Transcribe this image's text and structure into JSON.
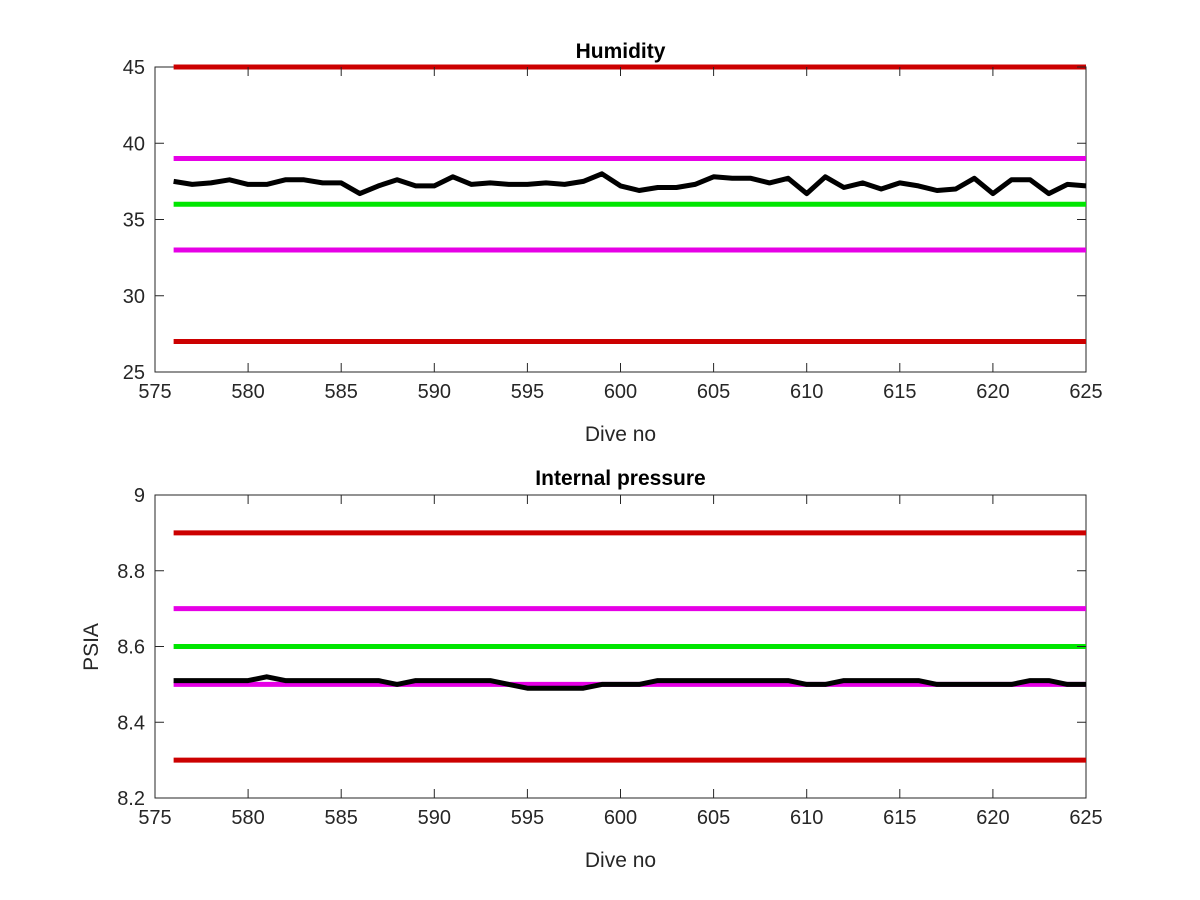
{
  "figure": {
    "background": "#ffffff"
  },
  "chart_data": [
    {
      "type": "line",
      "title": "Humidity",
      "xlabel": "Dive no",
      "ylabel": "",
      "xlim": [
        575,
        625
      ],
      "ylim": [
        25,
        45
      ],
      "xticks": [
        575,
        580,
        585,
        590,
        595,
        600,
        605,
        610,
        615,
        620,
        625
      ],
      "yticks": [
        25,
        30,
        35,
        40,
        45
      ],
      "grid": false,
      "reference_lines": [
        {
          "y": 45,
          "color": "#cc0000"
        },
        {
          "y": 39,
          "color": "#e600e6"
        },
        {
          "y": 36,
          "color": "#00e600"
        },
        {
          "y": 33,
          "color": "#e600e6"
        },
        {
          "y": 27,
          "color": "#cc0000"
        }
      ],
      "series": [
        {
          "color": "#000000",
          "x": [
            576,
            577,
            578,
            579,
            580,
            581,
            582,
            583,
            584,
            585,
            586,
            587,
            588,
            589,
            590,
            591,
            592,
            593,
            594,
            595,
            596,
            597,
            598,
            599,
            600,
            601,
            602,
            603,
            604,
            605,
            606,
            607,
            608,
            609,
            610,
            611,
            612,
            613,
            614,
            615,
            616,
            617,
            618,
            619,
            620,
            621,
            622,
            623,
            624,
            625
          ],
          "y": [
            37.5,
            37.3,
            37.4,
            37.6,
            37.3,
            37.3,
            37.6,
            37.6,
            37.4,
            37.4,
            36.7,
            37.2,
            37.6,
            37.2,
            37.2,
            37.8,
            37.3,
            37.4,
            37.3,
            37.3,
            37.4,
            37.3,
            37.5,
            38.0,
            37.2,
            36.9,
            37.1,
            37.1,
            37.3,
            37.8,
            37.7,
            37.7,
            37.4,
            37.7,
            36.7,
            37.8,
            37.1,
            37.4,
            37.0,
            37.4,
            37.2,
            36.9,
            37.0,
            37.7,
            36.7,
            37.6,
            37.6,
            36.7,
            37.3,
            37.2
          ]
        }
      ]
    },
    {
      "type": "line",
      "title": "Internal pressure",
      "xlabel": "Dive no",
      "ylabel": "PSIA",
      "xlim": [
        575,
        625
      ],
      "ylim": [
        8.2,
        9.0
      ],
      "xticks": [
        575,
        580,
        585,
        590,
        595,
        600,
        605,
        610,
        615,
        620,
        625
      ],
      "yticks": [
        8.2,
        8.4,
        8.6,
        8.8,
        9.0
      ],
      "ytick_labels": [
        "8.2",
        "8.4",
        "8.6",
        "8.8",
        "9"
      ],
      "grid": false,
      "reference_lines": [
        {
          "y": 8.9,
          "color": "#cc0000"
        },
        {
          "y": 8.7,
          "color": "#e600e6"
        },
        {
          "y": 8.6,
          "color": "#00e600"
        },
        {
          "y": 8.5,
          "color": "#e600e6"
        },
        {
          "y": 8.3,
          "color": "#cc0000"
        }
      ],
      "series": [
        {
          "color": "#000000",
          "x": [
            576,
            577,
            578,
            579,
            580,
            581,
            582,
            583,
            584,
            585,
            586,
            587,
            588,
            589,
            590,
            591,
            592,
            593,
            594,
            595,
            596,
            597,
            598,
            599,
            600,
            601,
            602,
            603,
            604,
            605,
            606,
            607,
            608,
            609,
            610,
            611,
            612,
            613,
            614,
            615,
            616,
            617,
            618,
            619,
            620,
            621,
            622,
            623,
            624,
            625
          ],
          "y": [
            8.51,
            8.51,
            8.51,
            8.51,
            8.51,
            8.52,
            8.51,
            8.51,
            8.51,
            8.51,
            8.51,
            8.51,
            8.5,
            8.51,
            8.51,
            8.51,
            8.51,
            8.51,
            8.5,
            8.49,
            8.49,
            8.49,
            8.49,
            8.5,
            8.5,
            8.5,
            8.51,
            8.51,
            8.51,
            8.51,
            8.51,
            8.51,
            8.51,
            8.51,
            8.5,
            8.5,
            8.51,
            8.51,
            8.51,
            8.51,
            8.51,
            8.5,
            8.5,
            8.5,
            8.5,
            8.5,
            8.51,
            8.51,
            8.5,
            8.5
          ]
        }
      ]
    }
  ]
}
